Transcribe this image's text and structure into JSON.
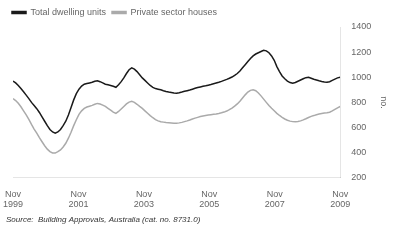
{
  "chart_data": {
    "type": "line",
    "ylabel": "no.",
    "annotations": [
      "Source:  Building Approvals, Australia (cat. no. 8731.0)"
    ],
    "legend": "upper left",
    "grid": false,
    "xlim": [
      0,
      120
    ],
    "xticks": [
      {
        "value": 0,
        "label": "Nov\n1999"
      },
      {
        "value": 24,
        "label": "Nov\n2001"
      },
      {
        "value": 48,
        "label": "Nov\n2003"
      },
      {
        "value": 72,
        "label": "Nov\n2005"
      },
      {
        "value": 96,
        "label": "Nov\n2007"
      },
      {
        "value": 120,
        "label": "Nov\n2009"
      }
    ],
    "ylim": [
      200,
      1400
    ],
    "yticks": [
      200,
      400,
      600,
      800,
      1000,
      1200,
      1400
    ],
    "x": [
      0,
      0.968,
      1.935,
      2.903,
      3.871,
      4.839,
      5.806,
      6.774,
      7.742,
      8.71,
      9.677,
      10.645,
      11.613,
      12.581,
      13.548,
      14.516,
      15.484,
      16.452,
      17.419,
      18.387,
      19.355,
      20.323,
      21.29,
      22.258,
      23.226,
      24.194,
      25.161,
      26.129,
      27.097,
      28.065,
      29.032,
      30,
      30.968,
      31.935,
      32.903,
      33.871,
      34.839,
      35.806,
      36.774,
      37.742,
      38.71,
      39.677,
      40.645,
      41.613,
      42.581,
      43.548,
      44.516,
      45.484,
      46.452,
      47.419,
      48.387,
      49.355,
      50.323,
      51.29,
      52.258,
      53.226,
      54.194,
      55.161,
      56.129,
      57.097,
      58.065,
      59.032,
      60,
      60.968,
      61.935,
      62.903,
      63.871,
      64.839,
      65.806,
      66.774,
      67.742,
      68.71,
      69.677,
      70.645,
      71.613,
      72.581,
      73.548,
      74.516,
      75.484,
      76.452,
      77.419,
      78.387,
      79.355,
      80.323,
      81.29,
      82.258,
      83.226,
      84.194,
      85.161,
      86.129,
      87.097,
      88.065,
      89.032,
      90,
      90.968,
      91.935,
      92.903,
      93.871,
      94.839,
      95.806,
      96.774,
      97.742,
      98.71,
      99.677,
      100.645,
      101.613,
      102.581,
      103.548,
      104.516,
      105.484,
      106.452,
      107.419,
      108.387,
      109.355,
      110.323,
      111.29,
      112.258,
      113.226,
      114.194,
      115.161,
      116.129,
      117.097,
      118.065,
      119.032,
      120
    ],
    "series": [
      {
        "name": "Total dwelling units",
        "color": "#1a1a1a",
        "values": [
          970,
          955,
          935,
          910,
          885,
          858,
          830,
          800,
          775,
          750,
          720,
          685,
          650,
          615,
          585,
          565,
          555,
          565,
          585,
          615,
          650,
          700,
          760,
          820,
          870,
          905,
          930,
          945,
          950,
          955,
          960,
          968,
          972,
          965,
          955,
          945,
          940,
          935,
          928,
          920,
          940,
          965,
          995,
          1030,
          1060,
          1075,
          1065,
          1045,
          1020,
          995,
          975,
          955,
          935,
          920,
          910,
          905,
          900,
          893,
          887,
          882,
          878,
          874,
          873,
          877,
          882,
          888,
          893,
          898,
          905,
          912,
          918,
          923,
          928,
          932,
          937,
          942,
          948,
          954,
          960,
          967,
          975,
          983,
          992,
          1002,
          1015,
          1030,
          1050,
          1075,
          1100,
          1125,
          1150,
          1170,
          1185,
          1195,
          1205,
          1215,
          1210,
          1195,
          1170,
          1135,
          1085,
          1045,
          1010,
          988,
          970,
          958,
          952,
          958,
          968,
          978,
          988,
          997,
          1000,
          992,
          984,
          978,
          972,
          967,
          963,
          960,
          965,
          975,
          985,
          995,
          1000
        ]
      },
      {
        "name": "Private sector houses",
        "color": "#aaaaaa",
        "values": [
          830,
          815,
          793,
          765,
          733,
          700,
          665,
          625,
          588,
          555,
          520,
          487,
          455,
          428,
          408,
          398,
          397,
          408,
          422,
          445,
          475,
          515,
          563,
          615,
          662,
          705,
          733,
          752,
          763,
          770,
          776,
          785,
          792,
          787,
          778,
          768,
          753,
          738,
          723,
          713,
          728,
          748,
          768,
          788,
          802,
          808,
          800,
          785,
          768,
          752,
          733,
          714,
          695,
          678,
          663,
          653,
          646,
          643,
          640,
          638,
          636,
          634,
          634,
          637,
          641,
          647,
          653,
          660,
          668,
          675,
          681,
          687,
          692,
          696,
          699,
          702,
          705,
          708,
          712,
          717,
          723,
          731,
          742,
          755,
          770,
          788,
          810,
          835,
          860,
          882,
          896,
          900,
          893,
          875,
          852,
          826,
          800,
          775,
          753,
          733,
          713,
          696,
          681,
          668,
          658,
          651,
          647,
          646,
          648,
          653,
          661,
          670,
          680,
          689,
          695,
          702,
          707,
          712,
          715,
          718,
          722,
          732,
          745,
          757,
          767
        ]
      }
    ]
  }
}
